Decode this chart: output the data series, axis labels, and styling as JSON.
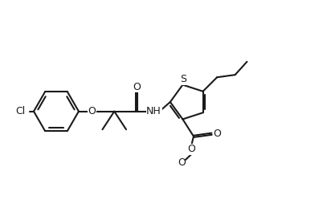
{
  "background": "#ffffff",
  "line_color": "#1a1a1a",
  "line_width": 1.5,
  "font_size": 9,
  "figsize": [
    4.12,
    2.54
  ],
  "dpi": 100,
  "xlim": [
    0,
    10.5
  ],
  "ylim": [
    0,
    6.5
  ]
}
